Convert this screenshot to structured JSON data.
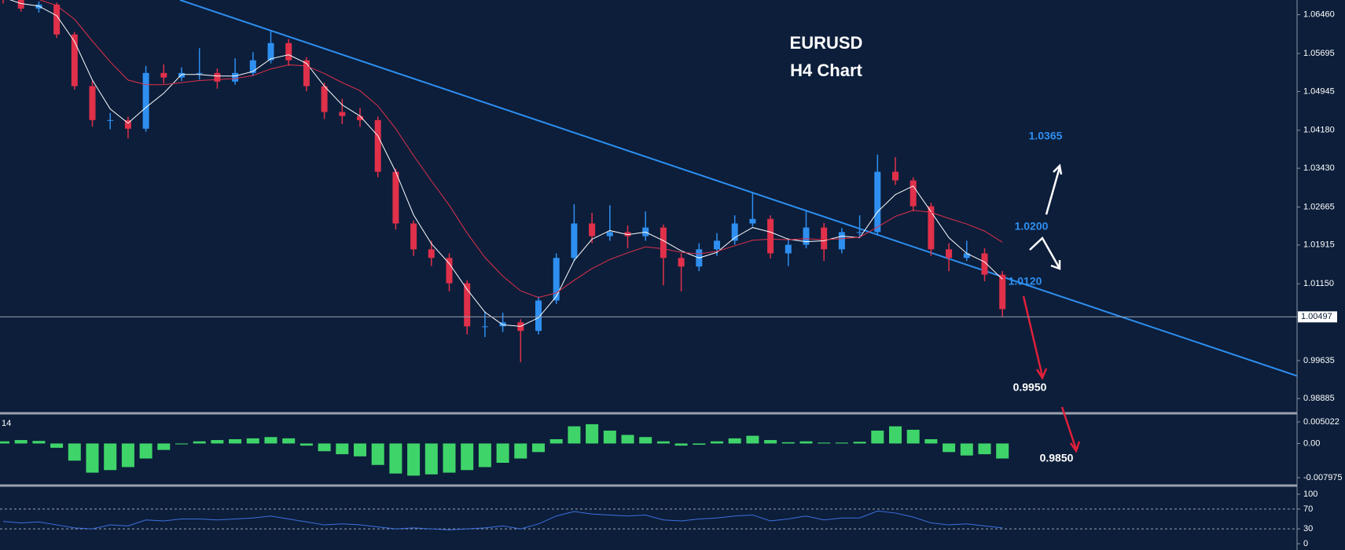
{
  "chart_data": {
    "type": "candlestick",
    "title": "EURUSD",
    "subtitle": "H4 Chart",
    "up_color": "#2e8ff0",
    "down_color": "#e0304a",
    "ylim": [
      0.9861,
      1.0675
    ],
    "yticks": [
      {
        "value": 1.0646,
        "label": "1.06460"
      },
      1.05695,
      1.04945,
      {
        "value": 1.0418,
        "label": "1.04180"
      },
      {
        "value": 1.0343,
        "label": "1.03430"
      },
      1.02665,
      1.01915,
      {
        "value": 1.0115,
        "label": "1.01150"
      },
      0.99635,
      0.98885
    ],
    "current_price": 1.00497,
    "candles": [
      [
        1.069,
        1.07,
        1.0668,
        1.0675
      ],
      [
        1.0675,
        1.068,
        1.0652,
        1.0658
      ],
      [
        1.0658,
        1.0672,
        1.065,
        1.0666
      ],
      [
        1.0666,
        1.067,
        1.06,
        1.0607
      ],
      [
        1.0607,
        1.0612,
        1.0498,
        1.0505
      ],
      [
        1.0505,
        1.0515,
        1.0425,
        1.0438
      ],
      [
        1.0438,
        1.0452,
        1.042,
        1.0438
      ],
      [
        1.0438,
        1.0445,
        1.0402,
        1.0421
      ],
      [
        1.0421,
        1.0545,
        1.0415,
        1.0531
      ],
      [
        1.0531,
        1.0548,
        1.051,
        1.0522
      ],
      [
        1.0522,
        1.0542,
        1.0515,
        1.0531
      ],
      [
        1.0531,
        1.058,
        1.0518,
        1.0531
      ],
      [
        1.0531,
        1.054,
        1.05,
        1.0514
      ],
      [
        1.0514,
        1.056,
        1.0508,
        1.0531
      ],
      [
        1.0531,
        1.0572,
        1.0525,
        1.0556
      ],
      [
        1.0556,
        1.0615,
        1.055,
        1.059
      ],
      [
        1.059,
        1.0598,
        1.0545,
        1.0556
      ],
      [
        1.0556,
        1.0562,
        1.0495,
        1.0505
      ],
      [
        1.0505,
        1.0512,
        1.044,
        1.0454
      ],
      [
        1.0454,
        1.048,
        1.043,
        1.0446
      ],
      [
        1.0446,
        1.0462,
        1.0425,
        1.0438
      ],
      [
        1.0438,
        1.0445,
        1.0325,
        1.0336
      ],
      [
        1.0336,
        1.0342,
        1.0222,
        1.0234
      ],
      [
        1.0234,
        1.024,
        1.017,
        1.0183
      ],
      [
        1.0183,
        1.02,
        1.015,
        1.0166
      ],
      [
        1.0166,
        1.0175,
        1.01,
        1.0116
      ],
      [
        1.0116,
        1.0122,
        1.0015,
        1.0031
      ],
      [
        1.0031,
        1.006,
        1.001,
        1.0031
      ],
      [
        1.0031,
        1.0058,
        1.002,
        1.0039
      ],
      [
        1.0039,
        1.0045,
        0.996,
        1.0022
      ],
      [
        1.0022,
        1.009,
        1.0015,
        1.0082
      ],
      [
        1.0082,
        1.0175,
        1.0075,
        1.0166
      ],
      [
        1.0166,
        1.0272,
        1.016,
        1.0234
      ],
      [
        1.0234,
        1.0255,
        1.0195,
        1.0209
      ],
      [
        1.0209,
        1.027,
        1.02,
        1.0217
      ],
      [
        1.0217,
        1.023,
        1.0185,
        1.0209
      ],
      [
        1.0209,
        1.0258,
        1.02,
        1.0226
      ],
      [
        1.0226,
        1.0232,
        1.0112,
        1.0166
      ],
      [
        1.0166,
        1.0175,
        1.01,
        1.0149
      ],
      [
        1.0149,
        1.0195,
        1.014,
        1.0183
      ],
      [
        1.0183,
        1.0215,
        1.017,
        1.02
      ],
      [
        1.02,
        1.025,
        1.0192,
        1.0234
      ],
      [
        1.0234,
        1.0295,
        1.0228,
        1.0243
      ],
      [
        1.0243,
        1.025,
        1.0165,
        1.0175
      ],
      [
        1.0175,
        1.0205,
        1.015,
        1.0192
      ],
      [
        1.0192,
        1.0258,
        1.0185,
        1.0226
      ],
      [
        1.0226,
        1.0235,
        1.016,
        1.0183
      ],
      [
        1.0183,
        1.0225,
        1.0175,
        1.0217
      ],
      [
        1.0217,
        1.025,
        1.0205,
        1.0217
      ],
      [
        1.0217,
        1.037,
        1.021,
        1.0336
      ],
      [
        1.0336,
        1.0365,
        1.031,
        1.0319
      ],
      [
        1.0319,
        1.0325,
        1.0258,
        1.0268
      ],
      [
        1.0268,
        1.0275,
        1.017,
        1.0183
      ],
      [
        1.0183,
        1.0195,
        1.014,
        1.0166
      ],
      [
        1.0166,
        1.02,
        1.016,
        1.0175
      ],
      [
        1.0175,
        1.0185,
        1.012,
        1.0133
      ],
      [
        1.0133,
        1.014,
        1.005,
        1.0065
      ]
    ],
    "moving_averages": [
      {
        "color": "#ffffff",
        "values": [
          1.068,
          1.0668,
          1.0663,
          1.0644,
          1.0593,
          1.0517,
          1.046,
          1.0432,
          1.0463,
          1.0491,
          1.0528,
          1.0528,
          1.0525,
          1.0525,
          1.0534,
          1.0559,
          1.0567,
          1.055,
          1.0505,
          1.0468,
          1.0446,
          1.0407,
          1.0336,
          1.0251,
          1.0194,
          1.0155,
          1.0104,
          1.0059,
          1.0034,
          1.0031,
          1.0048,
          1.009,
          1.0161,
          1.0203,
          1.022,
          1.0212,
          1.0217,
          1.02,
          1.018,
          1.0166,
          1.0177,
          1.0206,
          1.0226,
          1.0217,
          1.0203,
          1.0198,
          1.02,
          1.0209,
          1.0206,
          1.0257,
          1.0291,
          1.0308,
          1.0257,
          1.0206,
          1.0175,
          1.0158,
          1.0124
        ]
      },
      {
        "color": "#e0304a",
        "values": [
          1.069,
          1.0682,
          1.0676,
          1.0664,
          1.0637,
          1.0594,
          1.0553,
          1.0517,
          1.0508,
          1.0508,
          1.0512,
          1.0516,
          1.0518,
          1.052,
          1.0526,
          1.0539,
          1.0547,
          1.0545,
          1.053,
          1.0512,
          1.0496,
          1.0466,
          1.0421,
          1.0368,
          1.0318,
          1.027,
          1.0215,
          1.0167,
          1.013,
          1.0101,
          1.0088,
          1.0097,
          1.0122,
          1.0145,
          1.0163,
          1.0176,
          1.0188,
          1.0184,
          1.0177,
          1.0174,
          1.0179,
          1.019,
          1.0201,
          1.0203,
          1.0202,
          1.0204,
          1.0202,
          1.0204,
          1.0207,
          1.0227,
          1.0248,
          1.026,
          1.0256,
          1.0244,
          1.0233,
          1.0219,
          1.0197
        ]
      }
    ],
    "annotations": [
      {
        "text": "1.0365",
        "color": "#2e8ff0"
      },
      {
        "text": "1.0200",
        "color": "#2e8ff0"
      },
      {
        "text": "1.0120",
        "color": "#2e8ff0"
      },
      {
        "text": "0.9950",
        "color": "#ffffff"
      },
      {
        "text": "0.9850",
        "color": "#ffffff"
      }
    ],
    "macd": {
      "label": "14",
      "color": "#3fd46a",
      "ylim": [
        -0.00926,
        0.00649
      ],
      "yticks": [
        0.005022,
        {
          "value": 0,
          "label": "0.00"
        },
        -0.007975
      ],
      "values": [
        0.0005,
        0.0008,
        0.0006,
        -0.001,
        -0.004,
        -0.0068,
        -0.0062,
        -0.0055,
        -0.0035,
        -0.0015,
        -0.0002,
        0.0005,
        0.0008,
        0.001,
        0.0012,
        0.0015,
        0.0012,
        -0.0005,
        -0.0018,
        -0.0025,
        -0.003,
        -0.005,
        -0.007,
        -0.0075,
        -0.0072,
        -0.0068,
        -0.0062,
        -0.0055,
        -0.0045,
        -0.0035,
        -0.002,
        0.001,
        0.004,
        0.0045,
        0.003,
        0.002,
        0.0015,
        0.0005,
        -0.0005,
        -0.0003,
        0.0005,
        0.0012,
        0.0018,
        0.0008,
        0.0003,
        0.0005,
        0.0002,
        0.0002,
        0.0004,
        0.003,
        0.004,
        0.0032,
        0.001,
        -0.002,
        -0.0028,
        -0.0025,
        -0.0035
      ]
    },
    "rsi": {
      "color": "#3f6fe0",
      "ylim": [
        -12.7,
        112.7
      ],
      "yticks": [
        100,
        70,
        30,
        0
      ],
      "levels": [
        70,
        30
      ],
      "values": [
        45,
        42,
        44,
        38,
        32,
        30,
        38,
        36,
        48,
        46,
        50,
        50,
        48,
        50,
        52,
        56,
        50,
        44,
        38,
        40,
        38,
        34,
        30,
        32,
        30,
        28,
        30,
        32,
        36,
        30,
        40,
        56,
        65,
        60,
        58,
        56,
        58,
        48,
        46,
        50,
        52,
        56,
        58,
        46,
        50,
        56,
        48,
        52,
        52,
        66,
        62,
        54,
        42,
        38,
        40,
        36,
        32
      ]
    }
  }
}
